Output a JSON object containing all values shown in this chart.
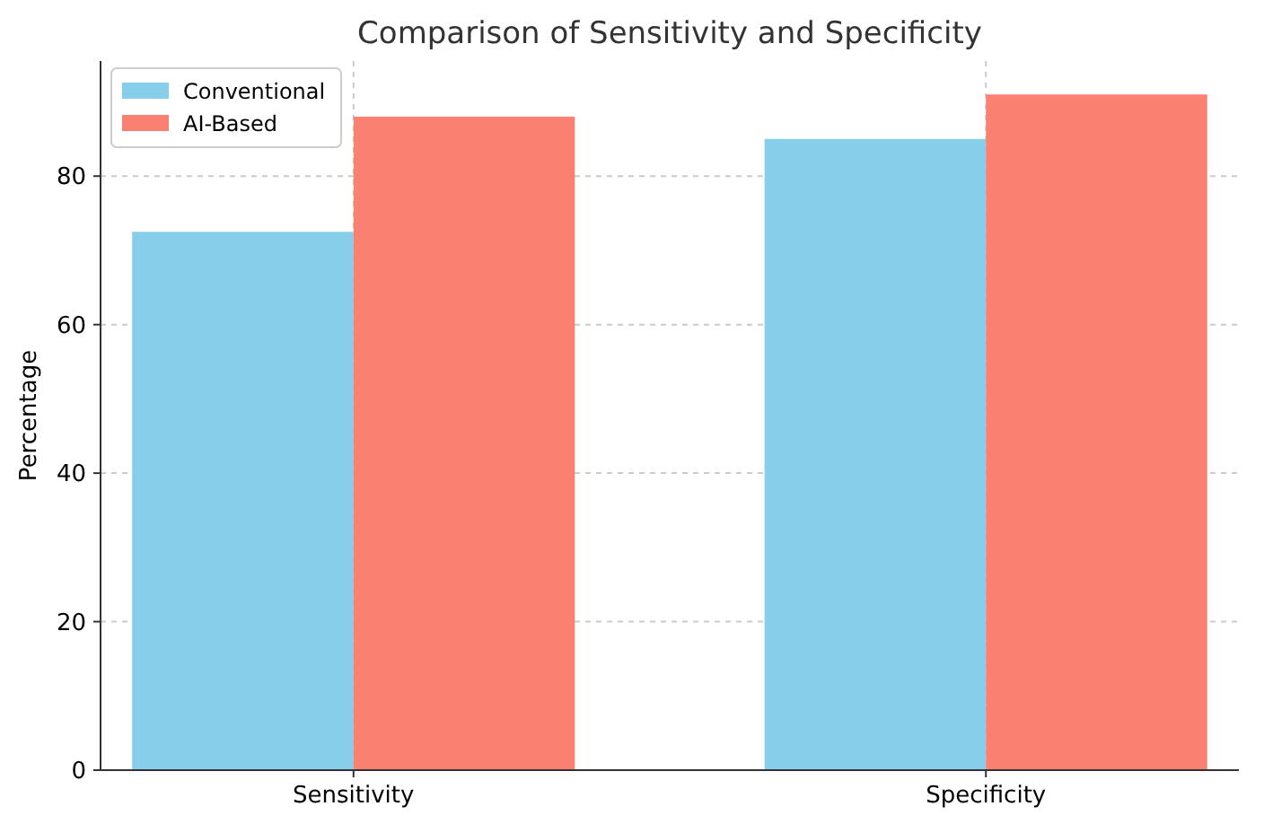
{
  "chart_data": {
    "type": "bar",
    "title": "Comparison of Sensitivity and Specificity",
    "ylabel": "Percentage",
    "categories": [
      "Sensitivity",
      "Specificity"
    ],
    "series": [
      {
        "name": "Conventional",
        "color": "#87ceeb",
        "values": [
          72.5,
          85
        ]
      },
      {
        "name": "AI-Based",
        "color": "#fa8072",
        "values": [
          88,
          91
        ]
      }
    ],
    "ylim": [
      0,
      95.5
    ],
    "yticks": [
      0,
      20,
      40,
      60,
      80
    ],
    "grid": true,
    "legend": "top left"
  }
}
